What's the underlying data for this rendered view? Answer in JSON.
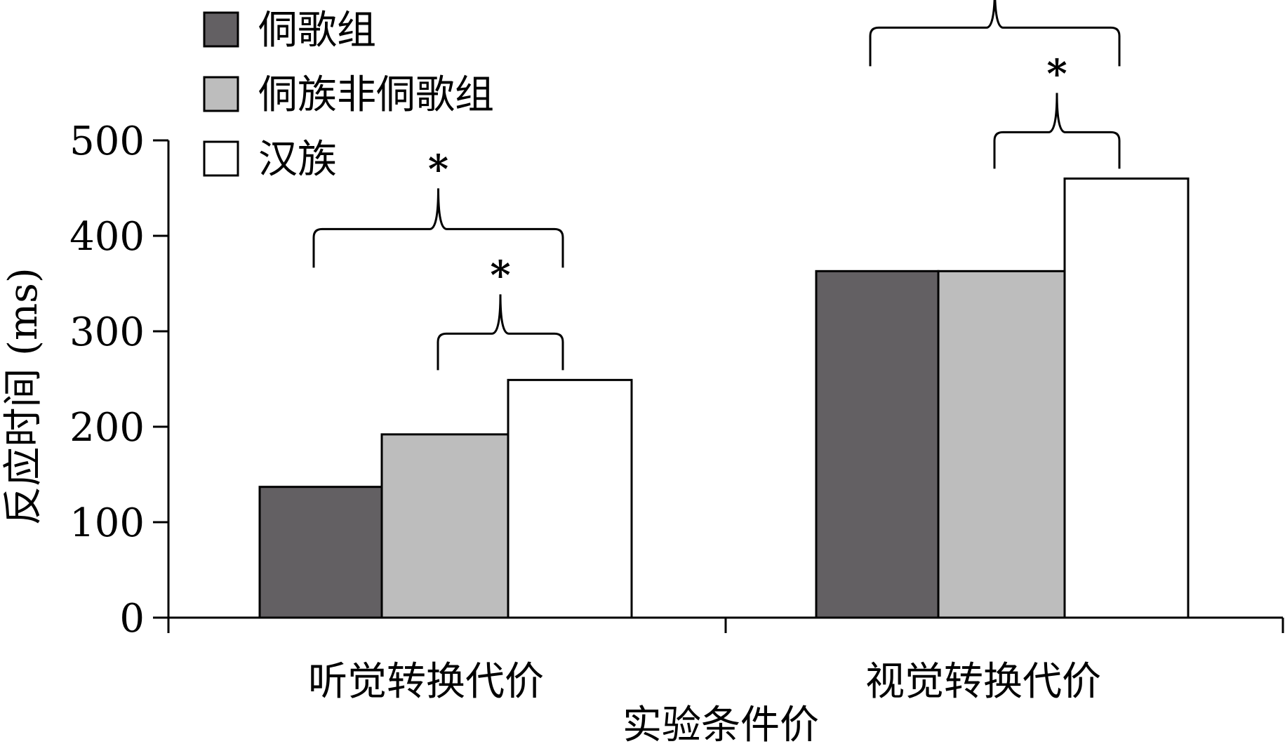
{
  "chart_data": {
    "type": "bar",
    "categories": [
      "听觉转换代价",
      "视觉转换代价"
    ],
    "series": [
      {
        "name": "侗歌组",
        "values": [
          137,
          363
        ],
        "color": "#636063"
      },
      {
        "name": "侗族非侗歌组",
        "values": [
          192,
          363
        ],
        "color": "#bdbdbd"
      },
      {
        "name": "汉族",
        "values": [
          249,
          460
        ],
        "color": "#ffffff"
      }
    ],
    "title": "",
    "xlabel": "实验条件价",
    "ylabel": "反应时间 (ms)",
    "ylim": [
      0,
      500
    ],
    "yticks": [
      0,
      100,
      200,
      300,
      400,
      500
    ],
    "grid": false,
    "legend_position": "top-left",
    "significance": [
      {
        "category": "听觉转换代价",
        "from_series": 1,
        "to_series": 2,
        "label": "*"
      },
      {
        "category": "听觉转换代价",
        "from_series": 0,
        "to_series": 2,
        "label": "*"
      },
      {
        "category": "视觉转换代价",
        "from_series": 1,
        "to_series": 2,
        "label": "*"
      },
      {
        "category": "视觉转换代价",
        "from_series": 0,
        "to_series": 2,
        "label": "*"
      }
    ]
  }
}
